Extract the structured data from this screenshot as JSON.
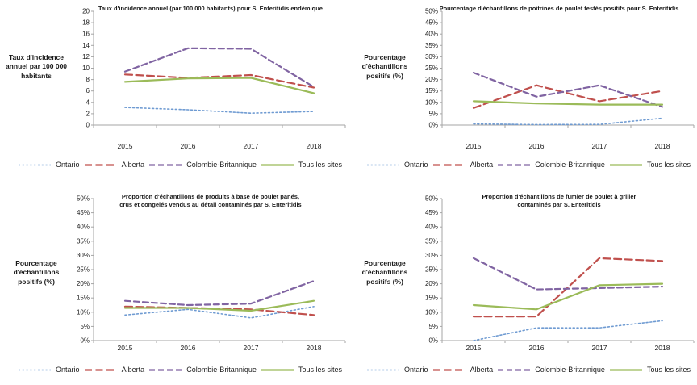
{
  "figure": {
    "background": "#FFFFFF"
  },
  "axis_color": "#A6A6A6",
  "legend": {
    "series": [
      {
        "name": "Ontario",
        "color": "#6F9BD2",
        "dash": "2,2.8",
        "stroke_width": 1.6
      },
      {
        "name": "Alberta",
        "color": "#C0504D",
        "dash": "9,4.5",
        "stroke_width": 2.2
      },
      {
        "name": "Colombie-Britannique",
        "color": "#8064A2",
        "dash": "7,4",
        "stroke_width": 2.2
      },
      {
        "name": "Tous les sites",
        "color": "#9BBB59",
        "dash": "",
        "stroke_width": 2.2
      }
    ]
  },
  "chart_data": [
    {
      "type": "line",
      "title": "Taux d'incidence annuel (par 100 000 habitants) pour S. Enteritidis endémique",
      "title_display": "Taux d'incidence annuel (par 100 000 habitants) pour S. Enteritidis endémique",
      "ylabel": "Taux d'incidence\nannuel par 100 000\nhabitants",
      "xlabel": "",
      "categories": [
        "2015",
        "2016",
        "2017",
        "2018"
      ],
      "ylim": [
        0,
        20
      ],
      "ytick_step": 2,
      "percent": false,
      "grid": false,
      "legend_position": "bottom",
      "series": [
        {
          "name": "Ontario",
          "values": [
            3.1,
            2.7,
            2.1,
            2.4
          ]
        },
        {
          "name": "Alberta",
          "values": [
            8.9,
            8.3,
            8.8,
            6.6
          ]
        },
        {
          "name": "Colombie-Britannique",
          "values": [
            9.4,
            13.5,
            13.4,
            6.7
          ]
        },
        {
          "name": "Tous les sites",
          "values": [
            7.6,
            8.2,
            8.3,
            5.6
          ]
        }
      ]
    },
    {
      "type": "line",
      "title": "Pourcentage d'échantillons de poitrines de poulet testés positifs pour S. Enteritidis",
      "title_display": "Pourcentage d'échantillons de poitrines de poulet testés positifs pour S. Enteritidis",
      "ylabel": "Pourcentage\nd'échantillons\npositifs (%)",
      "xlabel": "",
      "categories": [
        "2015",
        "2016",
        "2017",
        "2018"
      ],
      "ylim": [
        0,
        50
      ],
      "ytick_step": 5,
      "percent": true,
      "grid": false,
      "legend_position": "bottom",
      "series": [
        {
          "name": "Ontario",
          "values": [
            0.5,
            0.2,
            0.3,
            3
          ]
        },
        {
          "name": "Alberta",
          "values": [
            7.5,
            17.5,
            10.5,
            15
          ]
        },
        {
          "name": "Colombie-Britannique",
          "values": [
            23,
            12.5,
            17.5,
            8
          ]
        },
        {
          "name": "Tous les sites",
          "values": [
            10.5,
            9.5,
            9,
            9
          ]
        }
      ]
    },
    {
      "type": "line",
      "title": "Proportion d'échantillons de produits à base de poulet panés, crus et congelés vendus au détail contaminés par S. Enteritidis",
      "title_display": "Proportion d'échantillons de produits à base de poulet panés,\ncrus et congelés vendus au détail contaminés par S. Enteritidis",
      "ylabel": "Pourcentage\nd'échantillons\npositifs (%)",
      "xlabel": "",
      "categories": [
        "2015",
        "2016",
        "2017",
        "2018"
      ],
      "ylim": [
        0,
        50
      ],
      "ytick_step": 5,
      "percent": true,
      "grid": false,
      "legend_position": "bottom",
      "series": [
        {
          "name": "Ontario",
          "values": [
            9,
            11,
            8,
            12
          ]
        },
        {
          "name": "Alberta",
          "values": [
            12,
            11.5,
            11,
            9
          ]
        },
        {
          "name": "Colombie-Britannique",
          "values": [
            14,
            12.5,
            13,
            21
          ]
        },
        {
          "name": "Tous les sites",
          "values": [
            11.5,
            11.5,
            10.5,
            14
          ]
        }
      ]
    },
    {
      "type": "line",
      "title": "Proportion d'échantillons de fumier de poulet à griller contaminés par S. Enteritidis",
      "title_display": "Proportion d'échantillons de fumier de poulet à griller\ncontaminés par S. Enteritidis",
      "ylabel": "Pourcentage\nd'échantillons\npositifs (%)",
      "xlabel": "",
      "categories": [
        "2015",
        "2016",
        "2017",
        "2018"
      ],
      "ylim": [
        0,
        50
      ],
      "ytick_step": 5,
      "percent": true,
      "grid": false,
      "legend_position": "bottom",
      "series": [
        {
          "name": "Ontario",
          "values": [
            0,
            4.5,
            4.5,
            7
          ]
        },
        {
          "name": "Alberta",
          "values": [
            8.5,
            8.5,
            29,
            28
          ]
        },
        {
          "name": "Colombie-Britannique",
          "values": [
            29,
            18,
            18.5,
            19
          ]
        },
        {
          "name": "Tous les sites",
          "values": [
            12.5,
            11,
            19.5,
            20
          ]
        }
      ]
    }
  ]
}
